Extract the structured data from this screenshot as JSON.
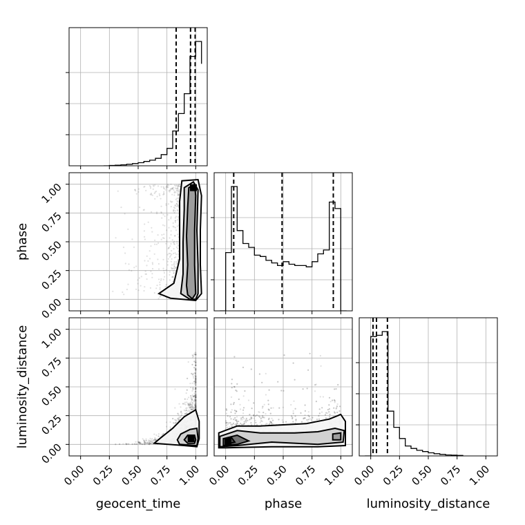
{
  "chart_data": {
    "type": "corner",
    "parameters": [
      "geocent_time",
      "phase",
      "luminosity_distance"
    ],
    "tick_labels": [
      "0.00",
      "0.25",
      "0.50",
      "0.75",
      "1.00"
    ],
    "axis_range": [
      -0.1,
      1.1
    ],
    "grid": true,
    "histograms": [
      {
        "parameter": "geocent_time",
        "bin_edges": [
          0.2,
          0.25,
          0.3,
          0.35,
          0.4,
          0.45,
          0.5,
          0.55,
          0.6,
          0.65,
          0.7,
          0.75,
          0.8,
          0.85,
          0.9,
          0.95,
          1.0,
          1.05
        ],
        "counts": [
          0.0,
          0.003,
          0.005,
          0.008,
          0.012,
          0.018,
          0.025,
          0.035,
          0.045,
          0.06,
          0.09,
          0.14,
          0.28,
          0.42,
          0.58,
          0.88,
          1.0,
          0.82
        ],
        "quantiles": [
          0.83,
          0.955,
          0.995
        ]
      },
      {
        "parameter": "phase",
        "bin_edges": [
          -0.05,
          0.0,
          0.05,
          0.1,
          0.15,
          0.2,
          0.25,
          0.3,
          0.35,
          0.4,
          0.45,
          0.5,
          0.55,
          0.6,
          0.65,
          0.7,
          0.75,
          0.8,
          0.85,
          0.9,
          0.95,
          1.0,
          1.05
        ],
        "counts": [
          0.0,
          0.45,
          0.96,
          0.62,
          0.52,
          0.49,
          0.43,
          0.42,
          0.39,
          0.37,
          0.35,
          0.38,
          0.36,
          0.35,
          0.35,
          0.34,
          0.38,
          0.44,
          0.47,
          0.84,
          0.79,
          0.0
        ],
        "quantiles": [
          0.07,
          0.49,
          0.935
        ]
      },
      {
        "parameter": "luminosity_distance",
        "bin_edges": [
          -0.05,
          0.0,
          0.05,
          0.1,
          0.15,
          0.2,
          0.25,
          0.3,
          0.35,
          0.4,
          0.45,
          0.5,
          0.55,
          0.6,
          0.65,
          0.7,
          0.75,
          0.8
        ],
        "counts": [
          0.0,
          0.96,
          0.97,
          1.0,
          0.36,
          0.23,
          0.14,
          0.08,
          0.06,
          0.045,
          0.035,
          0.025,
          0.018,
          0.012,
          0.008,
          0.006,
          0.004
        ],
        "quantiles": [
          0.02,
          0.05,
          0.145
        ]
      }
    ],
    "pair_plots": [
      {
        "x": "geocent_time",
        "y": "phase",
        "peak": [
          0.98,
          0.97
        ],
        "contours": [
          [
            [
              0.97,
              0.005
            ],
            [
              0.93,
              0.04
            ],
            [
              0.92,
              0.12
            ],
            [
              0.93,
              0.3
            ],
            [
              0.92,
              0.55
            ],
            [
              0.93,
              0.8
            ],
            [
              0.94,
              0.97
            ],
            [
              0.99,
              1.0
            ],
            [
              1.0,
              0.9
            ],
            [
              0.99,
              0.6
            ],
            [
              0.99,
              0.3
            ],
            [
              1.0,
              0.05
            ]
          ],
          [
            [
              0.95,
              0.0
            ],
            [
              0.87,
              0.05
            ],
            [
              0.89,
              0.22
            ],
            [
              0.89,
              0.5
            ],
            [
              0.9,
              0.78
            ],
            [
              0.9,
              0.97
            ],
            [
              0.98,
              1.02
            ],
            [
              1.02,
              0.95
            ],
            [
              1.01,
              0.6
            ],
            [
              1.02,
              0.3
            ],
            [
              1.02,
              0.05
            ],
            [
              1.0,
              0.0
            ]
          ],
          [
            [
              0.78,
              0.01
            ],
            [
              0.68,
              0.05
            ],
            [
              0.81,
              0.14
            ],
            [
              0.86,
              0.35
            ],
            [
              0.86,
              0.6
            ],
            [
              0.86,
              0.85
            ],
            [
              0.88,
              1.03
            ],
            [
              1.02,
              1.04
            ],
            [
              1.05,
              0.9
            ],
            [
              1.04,
              0.6
            ],
            [
              1.04,
              0.3
            ],
            [
              1.05,
              0.05
            ],
            [
              1.0,
              -0.01
            ]
          ]
        ]
      },
      {
        "x": "geocent_time",
        "y": "luminosity_distance",
        "peak": [
          0.96,
          0.05
        ],
        "contours": [
          [
            [
              0.93,
              0.01
            ],
            [
              0.9,
              0.04
            ],
            [
              0.93,
              0.08
            ],
            [
              0.99,
              0.08
            ],
            [
              1.0,
              0.04
            ],
            [
              0.99,
              0.01
            ]
          ],
          [
            [
              0.86,
              0.0
            ],
            [
              0.84,
              0.04
            ],
            [
              0.87,
              0.09
            ],
            [
              0.95,
              0.13
            ],
            [
              1.01,
              0.14
            ],
            [
              1.02,
              0.05
            ],
            [
              1.01,
              -0.01
            ]
          ],
          [
            [
              0.64,
              0.01
            ],
            [
              0.7,
              0.06
            ],
            [
              0.8,
              0.14
            ],
            [
              0.9,
              0.24
            ],
            [
              1.0,
              0.3
            ],
            [
              1.03,
              0.2
            ],
            [
              1.03,
              0.05
            ],
            [
              1.01,
              -0.02
            ],
            [
              0.9,
              -0.01
            ]
          ]
        ]
      },
      {
        "x": "phase",
        "y": "luminosity_distance",
        "peak": [
          0.02,
          0.02
        ],
        "contours": [
          [
            [
              0.0,
              0.0
            ],
            [
              0.0,
              0.04
            ],
            [
              0.05,
              0.06
            ],
            [
              0.08,
              0.02
            ]
          ],
          [
            [
              -0.02,
              -0.01
            ],
            [
              -0.02,
              0.05
            ],
            [
              0.1,
              0.08
            ],
            [
              0.2,
              0.03
            ],
            [
              0.1,
              0.0
            ]
          ],
          [
            [
              0.93,
              0.04
            ],
            [
              0.93,
              0.09
            ],
            [
              1.0,
              0.1
            ],
            [
              1.0,
              0.04
            ]
          ],
          [
            [
              -0.05,
              -0.02
            ],
            [
              -0.05,
              0.07
            ],
            [
              0.1,
              0.12
            ],
            [
              0.3,
              0.1
            ],
            [
              0.45,
              0.1
            ],
            [
              0.6,
              0.1
            ],
            [
              0.8,
              0.11
            ],
            [
              0.95,
              0.14
            ],
            [
              1.03,
              0.12
            ],
            [
              1.02,
              0.02
            ],
            [
              0.8,
              0.0
            ],
            [
              0.4,
              0.02
            ],
            [
              0.1,
              -0.01
            ]
          ],
          [
            [
              -0.06,
              -0.03
            ],
            [
              -0.06,
              0.1
            ],
            [
              0.1,
              0.16
            ],
            [
              0.3,
              0.16
            ],
            [
              0.5,
              0.17
            ],
            [
              0.7,
              0.18
            ],
            [
              0.9,
              0.22
            ],
            [
              1.0,
              0.26
            ],
            [
              1.04,
              0.2
            ],
            [
              1.04,
              -0.01
            ],
            [
              0.8,
              -0.02
            ],
            [
              0.4,
              -0.02
            ],
            [
              0.0,
              -0.03
            ]
          ]
        ]
      }
    ]
  }
}
